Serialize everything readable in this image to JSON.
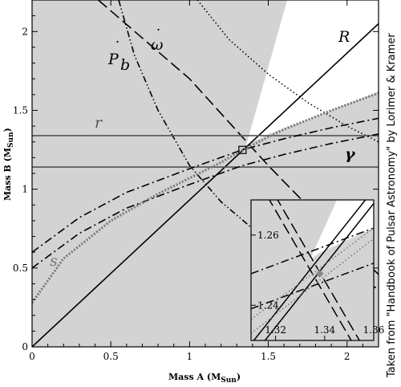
{
  "credit": "Taken from \"Handbook of Pulsar Astronomy\" by Lorimer & Kramer",
  "chart_data": {
    "type": "line",
    "xlabel": {
      "text": "Mass A (M",
      "sub": "Sun",
      "close": ")"
    },
    "ylabel": {
      "text": "Mass B (M",
      "sub": "Sun",
      "close": ")"
    },
    "xlim": [
      0,
      2.2
    ],
    "ylim": [
      0,
      2.2
    ],
    "xticks": [
      0,
      0.5,
      1,
      1.5,
      2
    ],
    "yticks": [
      0,
      0.5,
      1,
      1.5,
      2
    ],
    "xtick_labels": [
      "0",
      "0.5",
      "1",
      "1.5",
      "2"
    ],
    "ytick_labels": [
      "0",
      "0.5",
      "1",
      "1.5",
      "2"
    ],
    "excluded_region_color": "#d3d3d3",
    "labels": {
      "R": "R",
      "omega": "ω",
      "omega_dot": "˙",
      "pb": "P",
      "pb_sub": "b",
      "pb_dot": "˙",
      "r": "r",
      "s": "s",
      "gamma": "γ"
    },
    "series": [
      {
        "name": "R",
        "style": "solid",
        "color": "#000000",
        "x": [
          0,
          2.2
        ],
        "y": [
          0,
          2.05
        ]
      },
      {
        "name": "ω",
        "style": "dashed",
        "color": "#000000",
        "x": [
          0.42,
          1.0,
          1.5,
          1.9,
          2.2
        ],
        "y": [
          2.2,
          1.7,
          1.15,
          0.74,
          0.46
        ]
      },
      {
        "name": "P",
        "style": "dash-dot-dot",
        "color": "#000000",
        "x": [
          0.55,
          0.65,
          0.8,
          1.0,
          1.2,
          1.4,
          1.7,
          2.0,
          2.2
        ],
        "y": [
          2.2,
          1.85,
          1.5,
          1.15,
          0.92,
          0.75,
          0.57,
          0.44,
          0.37
        ]
      },
      {
        "name": "dotted-upper-right",
        "style": "dotted",
        "color": "#000000",
        "x": [
          1.05,
          1.25,
          1.5,
          1.75,
          2.0,
          2.2
        ],
        "y": [
          2.2,
          1.95,
          1.73,
          1.55,
          1.4,
          1.3
        ]
      },
      {
        "name": "r",
        "style": "solid",
        "color": "#555555",
        "x": [
          0,
          2.2
        ],
        "y": [
          1.34,
          1.34
        ]
      },
      {
        "name": "r",
        "style": "solid",
        "color": "#555555",
        "x": [
          0,
          2.2
        ],
        "y": [
          1.14,
          1.14
        ]
      },
      {
        "name": "γ",
        "style": "dash-dot",
        "color": "#000000",
        "x": [
          0,
          0.3,
          0.6,
          1.0,
          1.336,
          1.6,
          1.9,
          2.2
        ],
        "y": [
          0.6,
          0.82,
          0.98,
          1.13,
          1.25,
          1.32,
          1.39,
          1.45
        ]
      },
      {
        "name": "γ",
        "style": "dash-dot",
        "color": "#000000",
        "x": [
          0,
          0.3,
          0.6,
          1.0,
          1.336,
          1.6,
          1.9,
          2.2
        ],
        "y": [
          0.5,
          0.72,
          0.88,
          1.03,
          1.15,
          1.22,
          1.29,
          1.35
        ]
      },
      {
        "name": "s",
        "style": "dotted-thick",
        "color": "#777777",
        "x": [
          0,
          0.2,
          0.5,
          0.8,
          1.0,
          1.2,
          1.336,
          1.6,
          1.9,
          2.2
        ],
        "y": [
          0.28,
          0.56,
          0.8,
          0.97,
          1.07,
          1.17,
          1.249,
          1.38,
          1.5,
          1.61
        ]
      }
    ],
    "marker": {
      "x": 1.336,
      "y": 1.249,
      "shape": "open-square"
    },
    "inset": {
      "xlim": [
        1.31,
        1.36
      ],
      "ylim": [
        1.23,
        1.27
      ],
      "xticks": [
        1.32,
        1.34,
        1.36
      ],
      "yticks": [
        1.24,
        1.26
      ],
      "xtick_labels": [
        "1.32",
        "1.34",
        "1.36"
      ],
      "ytick_labels": [
        "1.24",
        "1.26"
      ],
      "series": [
        {
          "name": "R-1",
          "style": "solid",
          "x": [
            1.31,
            1.36
          ],
          "y": [
            1.229,
            1.273
          ]
        },
        {
          "name": "R-2",
          "style": "solid",
          "x": [
            1.31,
            1.36
          ],
          "y": [
            1.225,
            1.269
          ]
        },
        {
          "name": "ω-1",
          "style": "dashed",
          "x": [
            1.31,
            1.36
          ],
          "y": [
            1.283,
            1.223
          ]
        },
        {
          "name": "ω-2",
          "style": "dashed",
          "x": [
            1.31,
            1.36
          ],
          "y": [
            1.279,
            1.219
          ]
        },
        {
          "name": "γ-1",
          "style": "dash-dot",
          "x": [
            1.31,
            1.36
          ],
          "y": [
            1.249,
            1.262
          ]
        },
        {
          "name": "γ-2",
          "style": "dash-dot",
          "x": [
            1.31,
            1.36
          ],
          "y": [
            1.239,
            1.252
          ]
        },
        {
          "name": "s-1",
          "style": "dotted",
          "x": [
            1.31,
            1.36
          ],
          "y": [
            1.236,
            1.262
          ]
        },
        {
          "name": "s-2",
          "style": "dotted",
          "x": [
            1.31,
            1.36
          ],
          "y": [
            1.232,
            1.259
          ]
        }
      ],
      "marker": {
        "x": 1.338,
        "y": 1.249
      }
    }
  }
}
